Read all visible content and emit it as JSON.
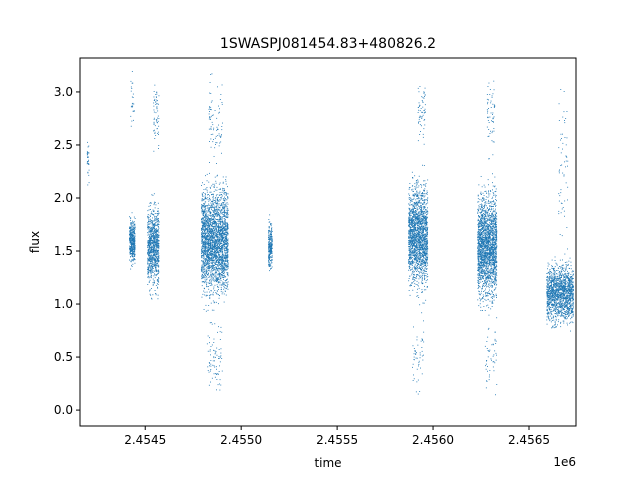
{
  "chart_data": {
    "type": "scatter",
    "title": "1SWASPJ081454.83+480826.2",
    "xlabel": "time",
    "ylabel": "flux",
    "x_offset_label": "1e6",
    "xlim": [
      2454160,
      2456745
    ],
    "ylim": [
      -0.15,
      3.32
    ],
    "x_ticks": [
      2454500,
      2455000,
      2455500,
      2456000,
      2456500
    ],
    "x_tick_labels": [
      "2.4545",
      "2.4550",
      "2.4555",
      "2.4560",
      "2.4565"
    ],
    "y_ticks": [
      0.0,
      0.5,
      1.0,
      1.5,
      2.0,
      2.5,
      3.0
    ],
    "y_tick_labels": [
      "0.0",
      "0.5",
      "1.0",
      "1.5",
      "2.0",
      "2.5",
      "3.0"
    ],
    "grid": false,
    "marker_color": "#1f77b4",
    "series": [
      {
        "clusters": [
          {
            "x_range": [
              2454195,
              2454205
            ],
            "y_center": 2.3,
            "y_spread": 0.3,
            "n": 30
          },
          {
            "x_range": [
              2454415,
              2454445
            ],
            "y_center": 1.6,
            "y_spread": 0.2,
            "n": 400
          },
          {
            "x_range": [
              2454420,
              2454440
            ],
            "y_center": 2.9,
            "y_spread": 0.25,
            "n": 25
          },
          {
            "x_range": [
              2454510,
              2454570
            ],
            "y_center": 1.55,
            "y_spread": 0.35,
            "n": 900
          },
          {
            "x_range": [
              2454540,
              2454570
            ],
            "y_center": 2.8,
            "y_spread": 0.3,
            "n": 60
          },
          {
            "x_range": [
              2454790,
              2454930
            ],
            "y_center": 1.6,
            "y_spread": 0.45,
            "n": 2600
          },
          {
            "x_range": [
              2454820,
              2454900
            ],
            "y_center": 0.5,
            "y_spread": 0.3,
            "n": 80
          },
          {
            "x_range": [
              2454830,
              2454900
            ],
            "y_center": 2.7,
            "y_spread": 0.35,
            "n": 80
          },
          {
            "x_range": [
              2455140,
              2455160
            ],
            "y_center": 1.55,
            "y_spread": 0.2,
            "n": 250
          },
          {
            "x_range": [
              2455870,
              2455970
            ],
            "y_center": 1.65,
            "y_spread": 0.45,
            "n": 1800
          },
          {
            "x_range": [
              2455920,
              2455960
            ],
            "y_center": 2.8,
            "y_spread": 0.3,
            "n": 60
          },
          {
            "x_range": [
              2455890,
              2455950
            ],
            "y_center": 0.5,
            "y_spread": 0.3,
            "n": 50
          },
          {
            "x_range": [
              2456230,
              2456330
            ],
            "y_center": 1.55,
            "y_spread": 0.45,
            "n": 2000
          },
          {
            "x_range": [
              2456280,
              2456320
            ],
            "y_center": 2.8,
            "y_spread": 0.3,
            "n": 60
          },
          {
            "x_range": [
              2456270,
              2456330
            ],
            "y_center": 0.5,
            "y_spread": 0.3,
            "n": 50
          },
          {
            "x_range": [
              2456590,
              2456730
            ],
            "y_center": 1.1,
            "y_spread": 0.25,
            "n": 1500
          },
          {
            "x_range": [
              2456650,
              2456700
            ],
            "y_center": 2.2,
            "y_spread": 0.6,
            "n": 60
          }
        ]
      }
    ]
  }
}
